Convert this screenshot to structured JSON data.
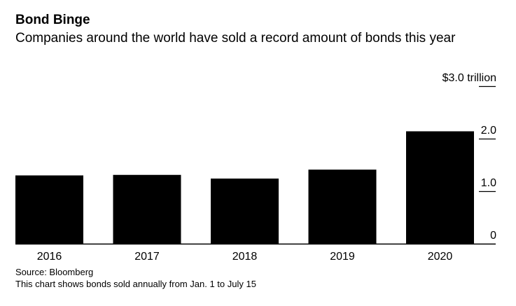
{
  "title": "Bond Binge",
  "subtitle": "Companies around the world have sold a record amount of bonds this year",
  "source": "Source: Bloomberg",
  "note": "This chart shows bonds sold annually from Jan. 1 to July 15",
  "colors": {
    "bar": "#000000",
    "axis": "#000000",
    "background": "#ffffff"
  },
  "chart_data": {
    "type": "bar",
    "title": "Bond Binge",
    "subtitle": "Companies around the world have sold a record amount of bonds this year",
    "xlabel": "",
    "ylabel": "",
    "categories": [
      "2016",
      "2017",
      "2018",
      "2019",
      "2020"
    ],
    "values": [
      1.3,
      1.31,
      1.24,
      1.41,
      2.14
    ],
    "ylim": [
      0,
      3.0
    ],
    "yticks": [
      0,
      1.0,
      2.0,
      3.0
    ],
    "ytick_labels": [
      "0",
      "1.0",
      "2.0",
      "$3.0 trillion"
    ],
    "grid": false,
    "legend": "none",
    "y_axis_side": "right"
  }
}
